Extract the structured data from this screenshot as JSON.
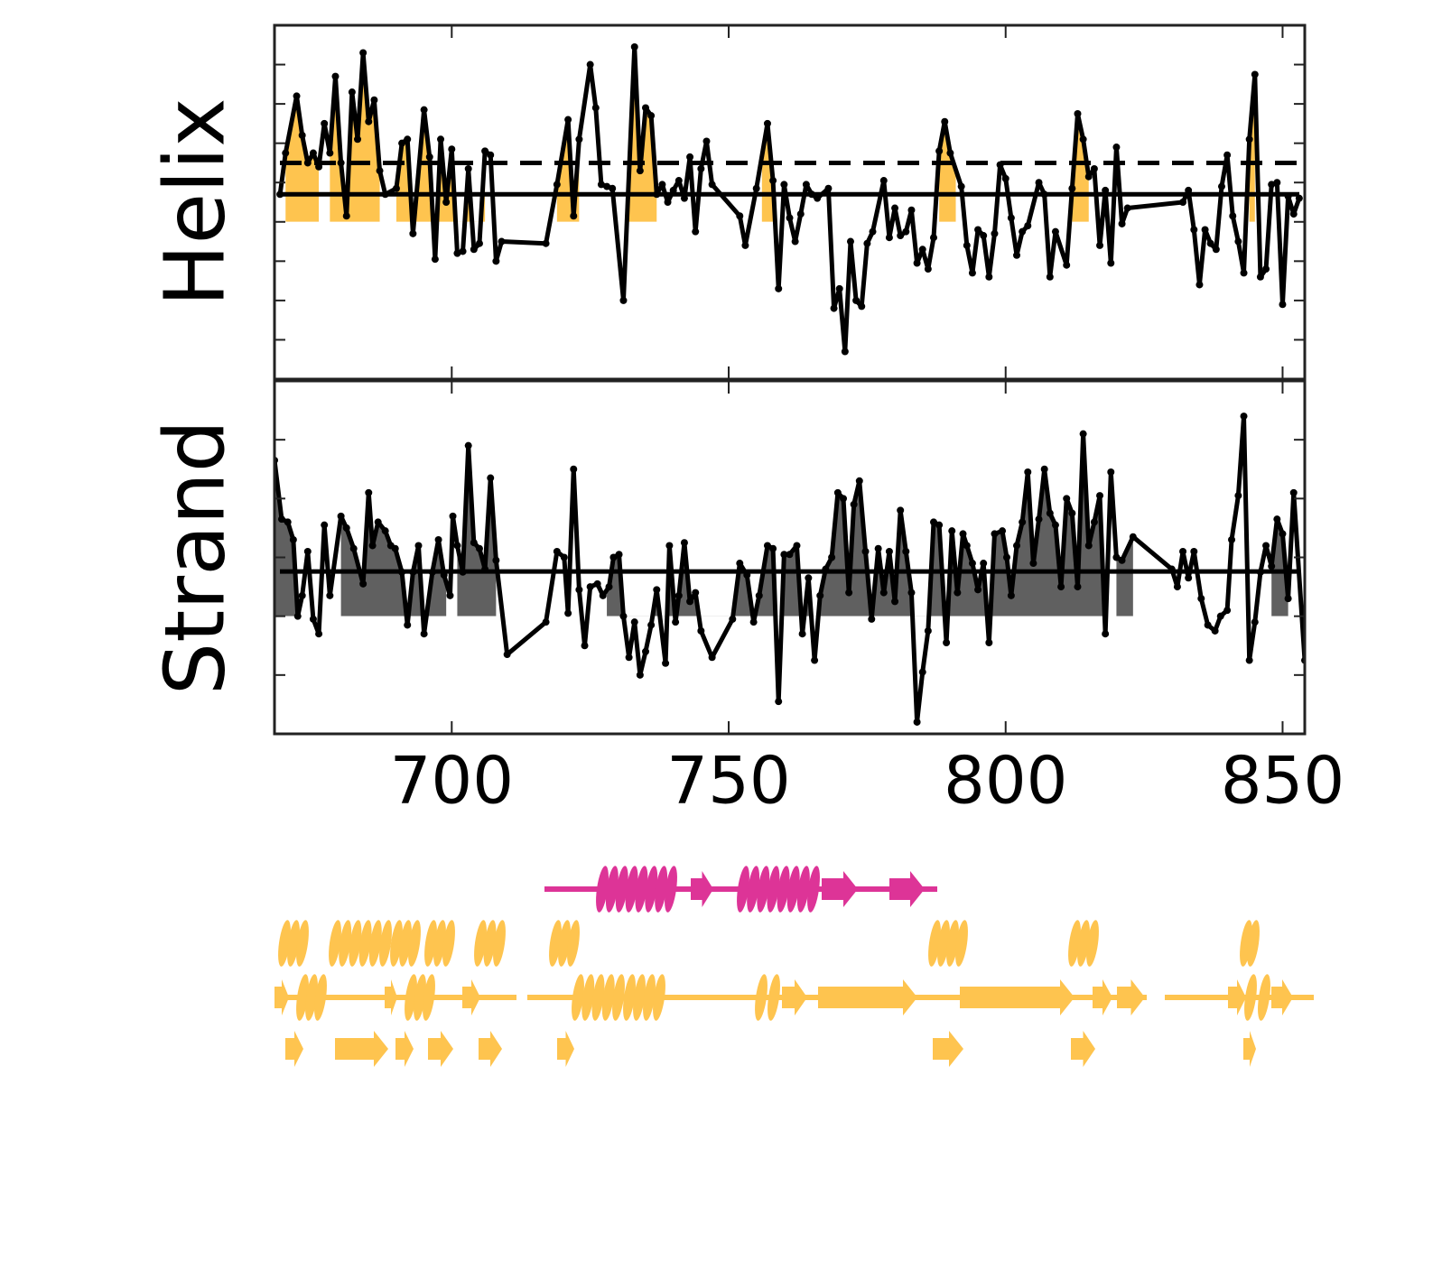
{
  "chart_data": [
    {
      "type": "line",
      "ylabel": "Helix",
      "color": "#000000",
      "fill_color": "#fec44f",
      "xlim": [
        668,
        854
      ],
      "xticks": [
        700,
        750,
        800,
        850
      ],
      "ylim": [
        -5,
        4
      ],
      "yticks": [
        -4,
        -3,
        -2,
        -1,
        0,
        1,
        2,
        3
      ],
      "fill_baseline": -1,
      "fill_regions": [
        [
          670,
          676
        ],
        [
          678,
          687
        ],
        [
          690,
          706
        ],
        [
          719,
          723
        ],
        [
          732,
          737
        ],
        [
          756,
          758
        ],
        [
          788,
          791
        ],
        [
          812,
          815
        ],
        [
          844,
          845
        ]
      ],
      "hlines": [
        {
          "value": -0.3,
          "style": "solid"
        },
        {
          "value": 0.5,
          "style": "dashed"
        }
      ],
      "x": [
        669,
        670,
        672,
        673,
        674,
        675,
        676,
        677,
        678,
        679,
        680,
        681,
        682,
        683,
        684,
        685,
        686,
        687,
        688,
        690,
        691,
        692,
        693,
        695,
        696,
        697,
        698,
        699,
        700,
        701,
        702,
        703,
        704,
        705,
        706,
        707,
        708,
        709,
        717,
        719,
        721,
        722,
        723,
        725,
        726,
        727,
        728,
        729,
        731,
        733,
        734,
        735,
        736,
        737,
        738,
        739,
        740,
        741,
        742,
        743,
        744,
        745,
        746,
        747,
        752,
        753,
        755,
        757,
        758,
        759,
        760,
        761,
        762,
        763,
        764,
        765,
        766,
        768,
        769,
        770,
        771,
        772,
        773,
        774,
        775,
        776,
        778,
        779,
        780,
        781,
        782,
        783,
        784,
        785,
        786,
        787,
        788,
        789,
        790,
        792,
        793,
        794,
        795,
        796,
        797,
        798,
        799,
        800,
        801,
        802,
        803,
        804,
        806,
        807,
        808,
        809,
        811,
        812,
        813,
        814,
        815,
        816,
        817,
        818,
        819,
        820,
        821,
        822,
        832,
        833,
        834,
        835,
        836,
        837,
        838,
        839,
        840,
        841,
        842,
        843,
        844,
        845,
        846,
        847,
        848,
        849,
        850,
        851,
        852,
        853
      ],
      "values": [
        -0.3,
        0.75,
        2.2,
        1.2,
        0.5,
        0.75,
        0.4,
        1.5,
        0.75,
        2.7,
        0.5,
        -0.85,
        2.3,
        1.1,
        3.3,
        1.55,
        2.1,
        0.3,
        -0.3,
        -0.15,
        1.0,
        1.1,
        -1.3,
        1.85,
        0.65,
        -1.95,
        1.1,
        -0.5,
        0.85,
        -1.8,
        -1.75,
        0.35,
        -1.7,
        -1.55,
        0.8,
        0.7,
        -2.0,
        -1.5,
        -1.55,
        -0.05,
        1.6,
        -0.85,
        1.1,
        3.0,
        1.9,
        -0.05,
        -0.1,
        -0.15,
        -3.0,
        3.45,
        0.3,
        1.9,
        1.7,
        -0.3,
        -0.05,
        -0.5,
        -0.2,
        0.05,
        -0.4,
        0.65,
        -1.25,
        0.35,
        1.05,
        -0.05,
        -0.85,
        -1.6,
        -0.15,
        1.5,
        0.05,
        -2.7,
        -0.05,
        -0.9,
        -1.5,
        -0.8,
        -0.05,
        -0.3,
        -0.4,
        -0.15,
        -3.2,
        -2.7,
        -4.3,
        -1.5,
        -3.0,
        -3.15,
        -1.55,
        -1.25,
        0.05,
        -1.4,
        -0.65,
        -1.35,
        -1.25,
        -0.7,
        -2.05,
        -1.7,
        -2.2,
        -1.4,
        0.8,
        1.55,
        0.75,
        -0.1,
        -1.6,
        -2.3,
        -1.2,
        -1.35,
        -2.4,
        -1.3,
        0.45,
        0.1,
        -0.9,
        -1.85,
        -1.25,
        -1.1,
        0.0,
        -0.3,
        -2.4,
        -1.25,
        -2.1,
        -0.15,
        1.75,
        1.1,
        0.15,
        0.35,
        -1.6,
        -0.2,
        -2.05,
        0.9,
        -1.05,
        -0.65,
        -0.5,
        -0.2,
        -1.2,
        -2.6,
        -1.2,
        -1.55,
        -1.7,
        -0.1,
        0.7,
        -0.85,
        -1.5,
        -2.3,
        1.1,
        2.75,
        -2.4,
        -2.2,
        -0.05,
        0.0,
        -3.1,
        -0.35,
        -0.8,
        -0.4
      ]
    },
    {
      "type": "line",
      "ylabel": "Strand",
      "color": "#000000",
      "fill_color": "#606060",
      "xlim": [
        668,
        854
      ],
      "xticks": [
        700,
        750,
        800,
        850
      ],
      "ylim": [
        -2,
        4
      ],
      "yticks": [
        -1,
        0,
        1,
        2,
        3
      ],
      "fill_baseline": 0,
      "fill_regions": [
        [
          668,
          672
        ],
        [
          680,
          699
        ],
        [
          701,
          708
        ],
        [
          728,
          818
        ],
        [
          820,
          823
        ],
        [
          848,
          851
        ]
      ],
      "hlines": [
        {
          "value": 0.76,
          "style": "solid"
        }
      ],
      "x": [
        668,
        669.3,
        670.4,
        671.4,
        672.2,
        673,
        674,
        675,
        676,
        677,
        678,
        680,
        681,
        682.3,
        684,
        685,
        685.7,
        686.7,
        688,
        689,
        689.8,
        691,
        692,
        693,
        694,
        695,
        696.5,
        697.6,
        698.6,
        699.7,
        700.2,
        701,
        702,
        703,
        704,
        705,
        706,
        707,
        708,
        710,
        717,
        719,
        720.3,
        721,
        722,
        723,
        724,
        725,
        726.3,
        727.3,
        728.4,
        729.2,
        730.2,
        731,
        732,
        733,
        734,
        735,
        736,
        737,
        738.6,
        739.3,
        740.4,
        741,
        742,
        743,
        744,
        745,
        747,
        750.7,
        752,
        753.3,
        754.5,
        755.5,
        757,
        758,
        759,
        760,
        761,
        762.3,
        763.3,
        764.4,
        765.5,
        766.5,
        767.5,
        768.6,
        769.7,
        770.7,
        771.7,
        772.6,
        773.6,
        774.7,
        775.8,
        777,
        778,
        779,
        780,
        781,
        782,
        783,
        784,
        785,
        786,
        787,
        788,
        789.3,
        790.3,
        791.3,
        792.3,
        793,
        794,
        795,
        796,
        797,
        798,
        799.4,
        800.2,
        801,
        802,
        803,
        804,
        805,
        806,
        807,
        808,
        809,
        810,
        811,
        812,
        813,
        814,
        815,
        816,
        817,
        818,
        819,
        820,
        821,
        823,
        830,
        831,
        832,
        833,
        834,
        835.3,
        836.5,
        837.8,
        838.8,
        840,
        840.8,
        842,
        843,
        844,
        845,
        846,
        847,
        848,
        849,
        850,
        851,
        852,
        854
      ],
      "values": [
        2.65,
        1.65,
        1.6,
        1.3,
        0,
        0.35,
        1.1,
        -0.05,
        -0.3,
        1.55,
        0.35,
        1.7,
        1.5,
        1.15,
        0.55,
        2.1,
        1.2,
        1.6,
        1.45,
        1.2,
        1.15,
        0.75,
        -0.15,
        0.75,
        1.2,
        -0.3,
        0.75,
        1.3,
        0.7,
        0.35,
        1.7,
        1.2,
        0.75,
        2.9,
        1.25,
        1.15,
        0.8,
        2.35,
        0.95,
        -0.65,
        -0.1,
        1.1,
        1.0,
        0.05,
        2.5,
        0.45,
        -0.5,
        0.5,
        0.55,
        0.35,
        0.5,
        1.0,
        1.05,
        0,
        -0.7,
        -0.1,
        -1.0,
        -0.6,
        -0.15,
        0.45,
        -0.8,
        1.2,
        -0.1,
        0.35,
        1.25,
        0.25,
        0.4,
        -0.25,
        -0.7,
        -0.05,
        0.9,
        0.7,
        -0.1,
        0.35,
        1.2,
        1.15,
        -1.45,
        1.05,
        1.05,
        1.2,
        -0.3,
        0.65,
        -0.75,
        0.35,
        0.8,
        1.0,
        2.1,
        2.0,
        0.4,
        1.9,
        2.3,
        1.1,
        -0.05,
        1.15,
        0.4,
        1.1,
        0.25,
        1.8,
        1.1,
        0.4,
        -1.8,
        -0.95,
        -0.25,
        1.6,
        1.55,
        -0.45,
        1.45,
        0.4,
        1.4,
        1.2,
        0.9,
        0.45,
        0.9,
        -0.45,
        1.4,
        1.45,
        1.0,
        0.35,
        1.2,
        1.6,
        2.45,
        0.9,
        1.65,
        2.5,
        1.75,
        1.55,
        0.5,
        2.0,
        1.75,
        0.5,
        3.1,
        1.2,
        1.6,
        2.05,
        -0.3,
        2.45,
        1.0,
        0.95,
        1.35,
        0.8,
        0.5,
        1.1,
        0.65,
        1.1,
        0.3,
        -0.15,
        -0.25,
        0,
        0.1,
        1.3,
        2.05,
        3.4,
        -0.75,
        -0.1,
        0.75,
        1.2,
        0.85,
        1.65,
        1.4,
        0.3,
        2.1,
        -0.75
      ]
    }
  ]
}
